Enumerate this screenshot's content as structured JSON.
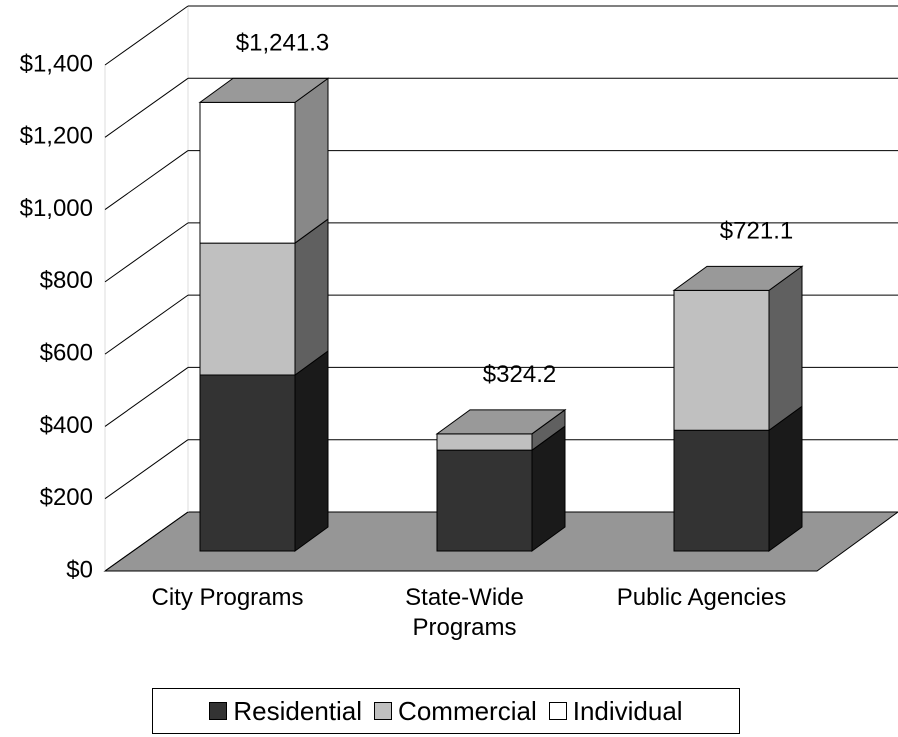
{
  "chart_data": {
    "type": "bar3d_stacked",
    "categories": [
      "City Programs",
      "State-Wide Programs",
      "Public Agencies"
    ],
    "series": [
      {
        "name": "Residential",
        "color": "#333333",
        "values": [
          487,
          279,
          334
        ]
      },
      {
        "name": "Commercial",
        "color": "#c0c0c0",
        "values": [
          365,
          45.2,
          387.1
        ]
      },
      {
        "name": "Individual",
        "color": "#ffffff",
        "values": [
          389.3,
          0,
          0
        ]
      }
    ],
    "totals": [
      1241.3,
      324.2,
      721.1
    ],
    "value_labels": [
      "$1,241.3",
      "$324.2",
      "$721.1"
    ],
    "ylim": [
      0,
      1400
    ],
    "yticks": [
      {
        "value": 0,
        "label": "$0"
      },
      {
        "value": 200,
        "label": "$200"
      },
      {
        "value": 400,
        "label": "$400"
      },
      {
        "value": 600,
        "label": "$600"
      },
      {
        "value": 800,
        "label": "$800"
      },
      {
        "value": 1000,
        "label": "$1,000"
      },
      {
        "value": 1200,
        "label": "$1,200"
      },
      {
        "value": 1400,
        "label": "$1,400"
      }
    ],
    "grid": true
  }
}
